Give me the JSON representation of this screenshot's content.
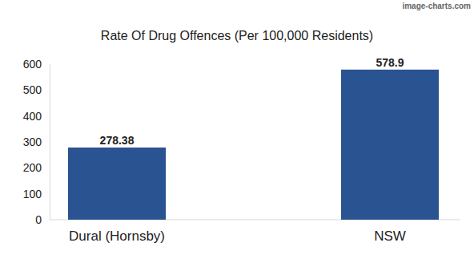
{
  "chart_data": {
    "type": "bar",
    "title": "Rate Of Drug Offences (Per 100,000 Residents)",
    "annotations": [
      "image-charts.com"
    ],
    "categories": [
      "Dural (Hornsby)",
      "NSW"
    ],
    "values": [
      278.38,
      578.9
    ],
    "color": "#2a5391",
    "ylim": [
      0,
      600
    ],
    "yticks": [
      0,
      100,
      200,
      300,
      400,
      500,
      600
    ],
    "grid": false,
    "data_labels": true
  }
}
